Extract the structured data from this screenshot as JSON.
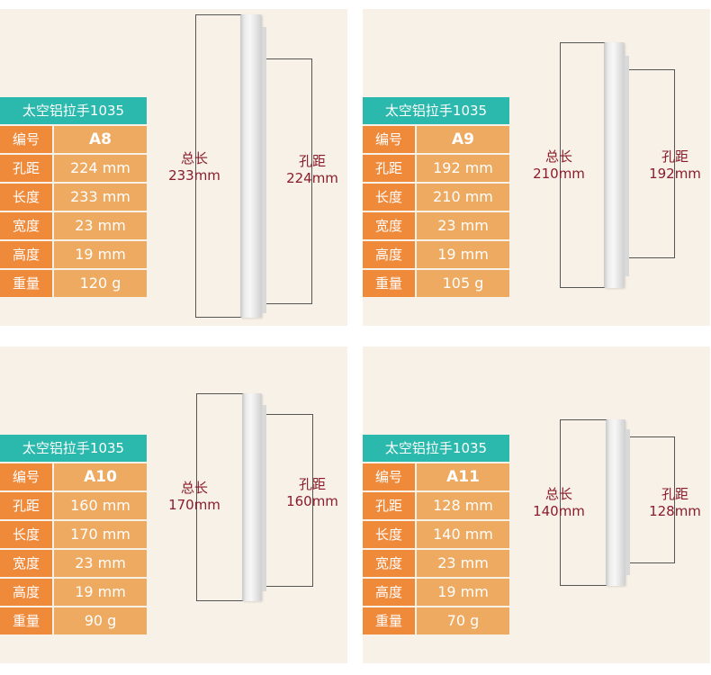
{
  "labels": {
    "title": "太空铝拉手1035",
    "code_key": "编号",
    "hole_key": "孔距",
    "length_key": "长度",
    "width_key": "宽度",
    "height_key": "高度",
    "weight_key": "重量",
    "total_dim_label": "总长",
    "hole_dim_label": "孔距"
  },
  "products": [
    {
      "code": "A8",
      "hole": "224 mm",
      "length": "233 mm",
      "width": "23 mm",
      "height": "19 mm",
      "weight": "120 g",
      "total_dim": "233mm",
      "hole_dim": "224mm"
    },
    {
      "code": "A9",
      "hole": "192 mm",
      "length": "210 mm",
      "width": "23 mm",
      "height": "19 mm",
      "weight": "105 g",
      "total_dim": "210mm",
      "hole_dim": "192mm"
    },
    {
      "code": "A10",
      "hole": "160 mm",
      "length": "170 mm",
      "width": "23 mm",
      "height": "19 mm",
      "weight": "90 g",
      "total_dim": "170mm",
      "hole_dim": "160mm"
    },
    {
      "code": "A11",
      "hole": "128 mm",
      "length": "140 mm",
      "width": "23 mm",
      "height": "19 mm",
      "weight": "70 g",
      "total_dim": "140mm",
      "hole_dim": "128mm"
    }
  ],
  "colors": {
    "teal": "#2bb8ad",
    "orange": "#f08a3b",
    "light_orange": "#eeaa60",
    "dim_text": "#8a1c2b",
    "panel_bg": "#f8f1e7"
  }
}
